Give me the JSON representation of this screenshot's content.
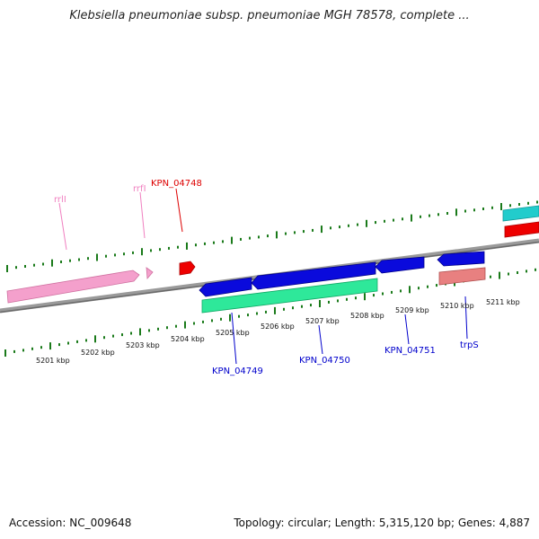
{
  "title": "Klebsiella pneumoniae subsp. pneumoniae MGH 78578, complete ...",
  "footer": {
    "accession": "Accession: NC_009648",
    "summary": "Topology: circular; Length: 5,315,120 bp; Genes: 4,887"
  },
  "ticks": [
    {
      "label": "5201 kbp"
    },
    {
      "label": "5202 kbp"
    },
    {
      "label": "5203 kbp"
    },
    {
      "label": "5204 kbp"
    },
    {
      "label": "5205 kbp"
    },
    {
      "label": "5206 kbp"
    },
    {
      "label": "5207 kbp"
    },
    {
      "label": "5208 kbp"
    },
    {
      "label": "5209 kbp"
    },
    {
      "label": "5210 kbp"
    },
    {
      "label": "5211 kbp"
    }
  ],
  "gene_labels": [
    {
      "text": "rrlI",
      "color": "#f080c0"
    },
    {
      "text": "rrfI",
      "color": "#f080c0"
    },
    {
      "text": "KPN_04748",
      "color": "#dd0000"
    },
    {
      "text": "KPN_04749",
      "color": "#0000cc"
    },
    {
      "text": "KPN_04750",
      "color": "#0000cc"
    },
    {
      "text": "KPN_04751",
      "color": "#0000cc"
    },
    {
      "text": "trpS",
      "color": "#0000cc"
    }
  ],
  "colors": {
    "backbone": "#8a8a8a",
    "tick": "#1a7a1a",
    "rrna": "#f4a0cc",
    "red_gene": "#ee0000",
    "blue_gene": "#0a0adc",
    "green_gene": "#2ee89a",
    "salmon_gene": "#e88080",
    "cyan_gene": "#22cccc"
  }
}
